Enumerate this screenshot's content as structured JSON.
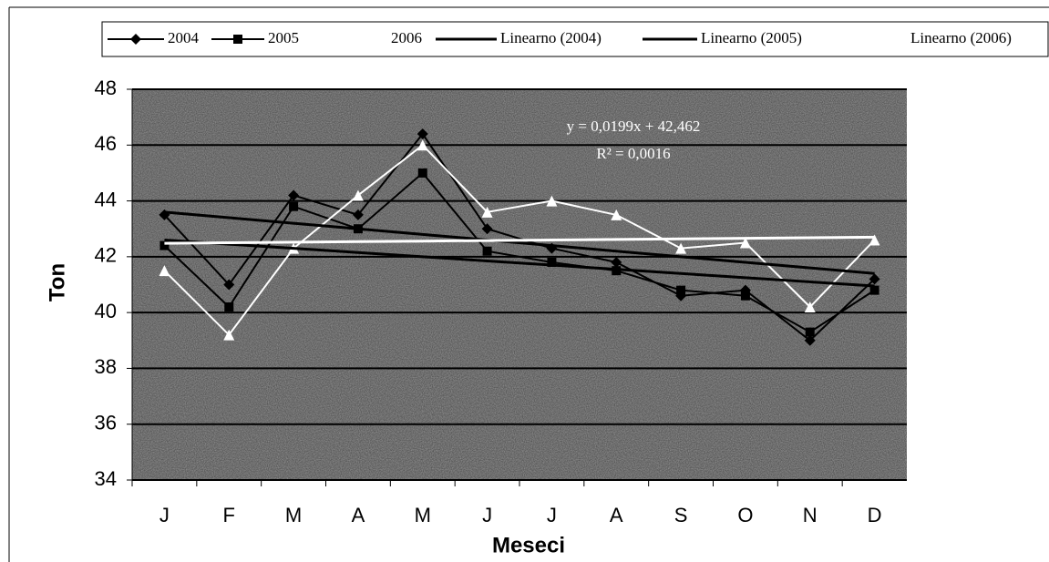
{
  "chart_data": {
    "type": "line",
    "categories": [
      "J",
      "F",
      "M",
      "A",
      "M",
      "J",
      "J",
      "A",
      "S",
      "O",
      "N",
      "D"
    ],
    "series": [
      {
        "name": "2004",
        "color": "#000000",
        "marker": "diamond",
        "values": [
          43.5,
          41.0,
          44.2,
          43.5,
          46.4,
          43.0,
          42.3,
          41.8,
          40.6,
          40.8,
          39.0,
          41.2
        ]
      },
      {
        "name": "2005",
        "color": "#000000",
        "marker": "square",
        "values": [
          42.4,
          40.2,
          43.8,
          43.0,
          45.0,
          42.2,
          41.8,
          41.5,
          40.8,
          40.6,
          39.3,
          40.8
        ]
      },
      {
        "name": "2006",
        "color": "#ffffff",
        "marker": "triangle",
        "values": [
          41.5,
          39.2,
          42.3,
          44.2,
          46.0,
          43.6,
          44.0,
          43.5,
          42.3,
          42.5,
          40.2,
          42.6
        ]
      },
      {
        "name": "Linearno (2004)",
        "color": "#000000",
        "values": [
          43.6,
          43.4,
          43.2,
          43.0,
          42.8,
          42.6,
          42.4,
          42.2,
          42.0,
          41.8,
          41.6,
          41.4
        ]
      },
      {
        "name": "Linearno (2005)",
        "color": "#000000",
        "values": [
          42.6,
          42.45,
          42.3,
          42.15,
          42.0,
          41.85,
          41.7,
          41.55,
          41.4,
          41.25,
          41.1,
          40.95
        ]
      },
      {
        "name": "Linearno (2006)",
        "color": "#ffffff",
        "values": [
          42.48,
          42.5,
          42.52,
          42.54,
          42.56,
          42.58,
          42.6,
          42.62,
          42.64,
          42.66,
          42.68,
          42.7
        ]
      }
    ],
    "ylim": [
      34,
      48
    ],
    "yticks": [
      34,
      36,
      38,
      40,
      42,
      44,
      46,
      48
    ],
    "grid": true,
    "y_label": "Ton",
    "x_label": "Meseci",
    "annotations": [
      "y = 0,0199x + 42,462",
      "R² = 0,0016"
    ]
  }
}
